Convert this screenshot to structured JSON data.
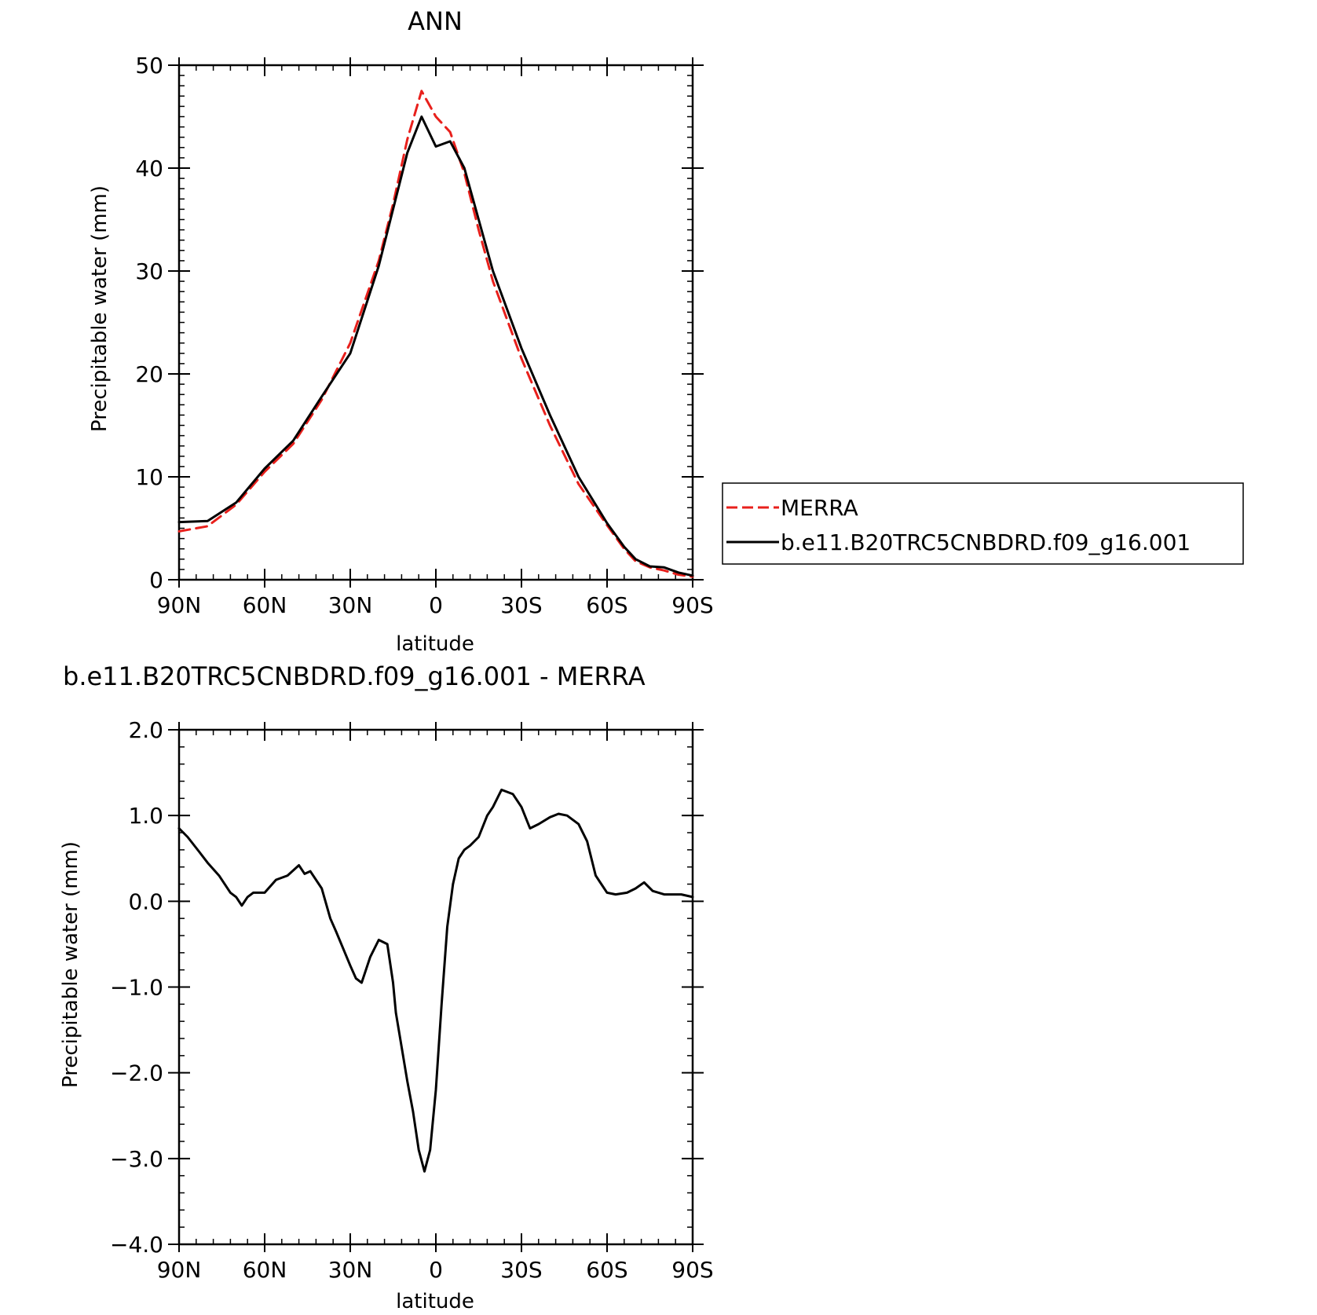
{
  "chart_data": [
    {
      "type": "line",
      "title": "ANN",
      "xlabel": "latitude",
      "ylabel": "Precipitable water (mm)",
      "xlim": [
        90,
        -90
      ],
      "ylim": [
        0,
        50
      ],
      "xticks": [
        90,
        60,
        30,
        0,
        -30,
        -60,
        -90
      ],
      "xtick_labels": [
        "90N",
        "60N",
        "30N",
        "0",
        "30S",
        "60S",
        "90S"
      ],
      "yticks": [
        0,
        10,
        20,
        30,
        40,
        50
      ],
      "ytick_labels": [
        "0",
        "10",
        "20",
        "30",
        "40",
        "50"
      ],
      "grid": false,
      "legend_position": "right",
      "series": [
        {
          "name": "MERRA",
          "style": "dashed",
          "color": "#e8201c",
          "x": [
            90,
            80,
            70,
            60,
            50,
            40,
            30,
            20,
            15,
            10,
            5,
            0,
            -5,
            -10,
            -15,
            -20,
            -30,
            -40,
            -50,
            -60,
            -66,
            -70,
            -75,
            -80,
            -85,
            -90
          ],
          "y": [
            4.7,
            5.2,
            7.3,
            10.5,
            13.2,
            17.5,
            23.0,
            31.0,
            36.5,
            42.8,
            47.5,
            45.0,
            43.5,
            39.5,
            34.0,
            29.0,
            21.5,
            15.0,
            9.3,
            5.3,
            3.0,
            1.8,
            1.2,
            0.9,
            0.5,
            0.3
          ]
        },
        {
          "name": "b.e11.B20TRC5CNBDRD.f09_g16.001",
          "style": "solid",
          "color": "#000000",
          "x": [
            90,
            80,
            70,
            60,
            50,
            40,
            30,
            20,
            15,
            10,
            5,
            0,
            -5,
            -10,
            -15,
            -20,
            -30,
            -40,
            -50,
            -60,
            -66,
            -70,
            -75,
            -80,
            -85,
            -90
          ],
          "y": [
            5.6,
            5.7,
            7.5,
            10.8,
            13.5,
            17.8,
            22.0,
            30.5,
            36.0,
            41.5,
            45.0,
            42.1,
            42.6,
            40.0,
            35.0,
            30.0,
            22.5,
            16.0,
            10.0,
            5.5,
            3.2,
            2.0,
            1.3,
            1.2,
            0.7,
            0.4
          ]
        }
      ]
    },
    {
      "type": "line",
      "title": "b.e11.B20TRC5CNBDRD.f09_g16.001 - MERRA",
      "xlabel": "latitude",
      "ylabel": "Precipitable water (mm)",
      "xlim": [
        90,
        -90
      ],
      "ylim": [
        -4.0,
        2.0
      ],
      "xticks": [
        90,
        60,
        30,
        0,
        -30,
        -60,
        -90
      ],
      "xtick_labels": [
        "90N",
        "60N",
        "30N",
        "0",
        "30S",
        "60S",
        "90S"
      ],
      "yticks": [
        2.0,
        1.0,
        0.0,
        -1.0,
        -2.0,
        -3.0,
        -4.0
      ],
      "ytick_labels": [
        "2.0",
        "1.0",
        "0.0",
        "−1.0",
        "−2.0",
        "−3.0",
        "−4.0"
      ],
      "grid": false,
      "series": [
        {
          "style": "solid",
          "color": "#000000",
          "x": [
            90,
            87,
            83,
            80,
            76,
            72,
            70,
            68,
            66,
            64,
            60,
            56,
            52,
            48,
            46,
            44,
            40,
            37,
            35,
            30,
            28,
            26,
            23,
            20,
            17,
            15,
            14,
            12,
            10,
            8,
            6,
            4,
            2,
            0,
            -2,
            -4,
            -6,
            -8,
            -10,
            -12,
            -15,
            -18,
            -20,
            -23,
            -27,
            -30,
            -33,
            -36,
            -40,
            -43,
            -46,
            -50,
            -53,
            -56,
            -60,
            -63,
            -67,
            -70,
            -73,
            -76,
            -80,
            -83,
            -86,
            -90
          ],
          "y": [
            0.85,
            0.75,
            0.58,
            0.45,
            0.3,
            0.1,
            0.05,
            -0.05,
            0.05,
            0.1,
            0.1,
            0.25,
            0.3,
            0.42,
            0.32,
            0.35,
            0.15,
            -0.2,
            -0.35,
            -0.75,
            -0.9,
            -0.95,
            -0.65,
            -0.45,
            -0.5,
            -0.95,
            -1.3,
            -1.7,
            -2.1,
            -2.45,
            -2.9,
            -3.15,
            -2.9,
            -2.2,
            -1.2,
            -0.3,
            0.2,
            0.5,
            0.6,
            0.65,
            0.75,
            1.0,
            1.1,
            1.3,
            1.25,
            1.1,
            0.85,
            0.9,
            0.98,
            1.02,
            1.0,
            0.9,
            0.7,
            0.3,
            0.1,
            0.08,
            0.1,
            0.15,
            0.22,
            0.12,
            0.08,
            0.08,
            0.08,
            0.05
          ]
        }
      ]
    }
  ]
}
